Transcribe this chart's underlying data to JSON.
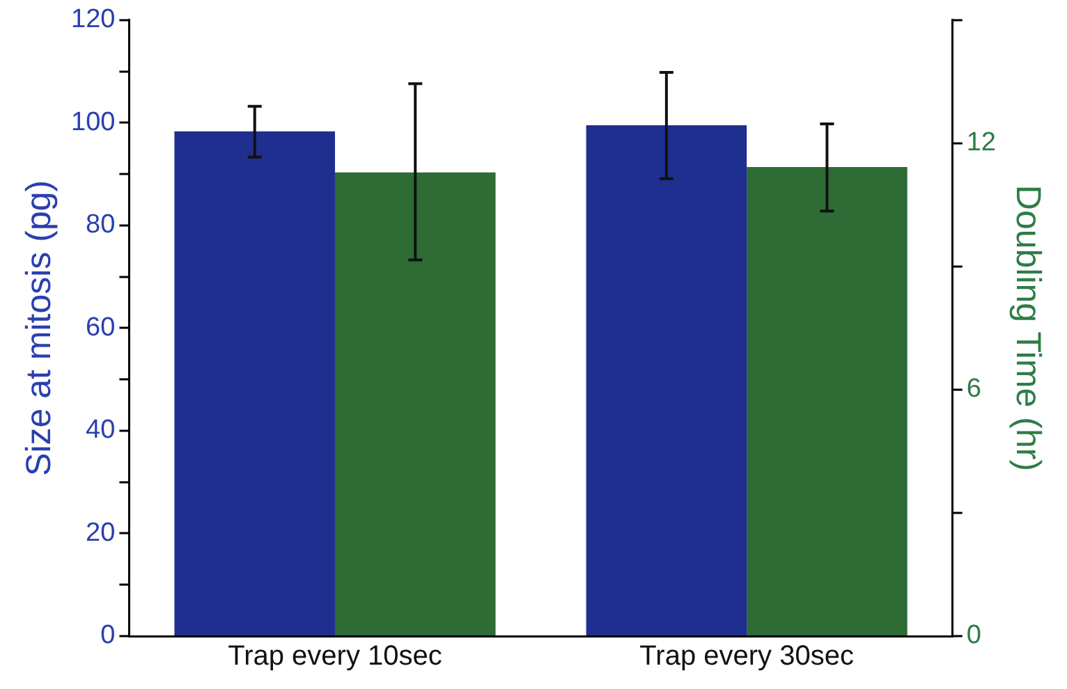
{
  "chart_data": {
    "type": "bar",
    "categories": [
      "Trap every 10sec",
      "Trap every 30sec"
    ],
    "ylabel": "Size at mitosis (pg)",
    "y2label": "Doubling Time (hr)",
    "ylim": [
      0,
      120
    ],
    "yticks": [
      0,
      {
        "value": 10,
        "label": null
      },
      20,
      {
        "value": 30,
        "label": null
      },
      40,
      {
        "value": 50,
        "label": null
      },
      60,
      {
        "value": 70,
        "label": null
      },
      80,
      {
        "value": 90,
        "label": null
      },
      100,
      {
        "value": 110,
        "label": null
      },
      120
    ],
    "y2lim": [
      0,
      15
    ],
    "y2ticks": [
      0,
      {
        "value": 3,
        "label": null
      },
      6,
      {
        "value": 9,
        "label": null
      },
      12,
      {
        "value": 15,
        "label": null
      }
    ],
    "grid": false,
    "legend": false,
    "series": [
      {
        "color": "#1f2f8f",
        "values": [
          98.3,
          99.5
        ],
        "errors": [
          [
            93.3,
            103.2
          ],
          [
            89.1,
            109.8
          ]
        ]
      },
      {
        "color": "#2e6b35",
        "axis": "y2",
        "values": [
          11.29,
          11.42
        ],
        "errors": [
          [
            9.16,
            13.45
          ],
          [
            10.35,
            12.47
          ]
        ]
      }
    ]
  }
}
